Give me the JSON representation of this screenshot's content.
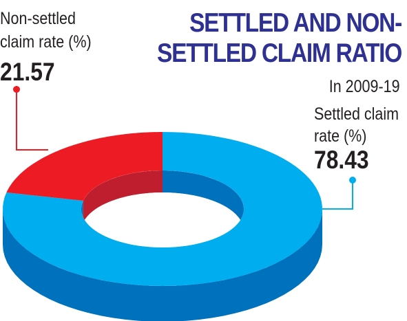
{
  "chart_data": {
    "type": "pie",
    "title": "SETTLED AND NON-SETTLED CLAIM RATIO",
    "subtitle": "In 2009-19",
    "slices": [
      {
        "label": "Settled claim rate (%)",
        "value": 78.43,
        "color": "#00aeef",
        "side_color": "#0071bc"
      },
      {
        "label": "Non-settled claim rate (%)",
        "value": 21.57,
        "color": "#ed1c24",
        "side_color": "#be1e2d"
      }
    ]
  },
  "labels": {
    "non_settled_line1": "Non-settled",
    "non_settled_line2": "claim rate (%)",
    "non_settled_value": "21.57",
    "settled_line1": "Settled claim",
    "settled_line2": "rate (%)",
    "settled_value": "78.43"
  }
}
